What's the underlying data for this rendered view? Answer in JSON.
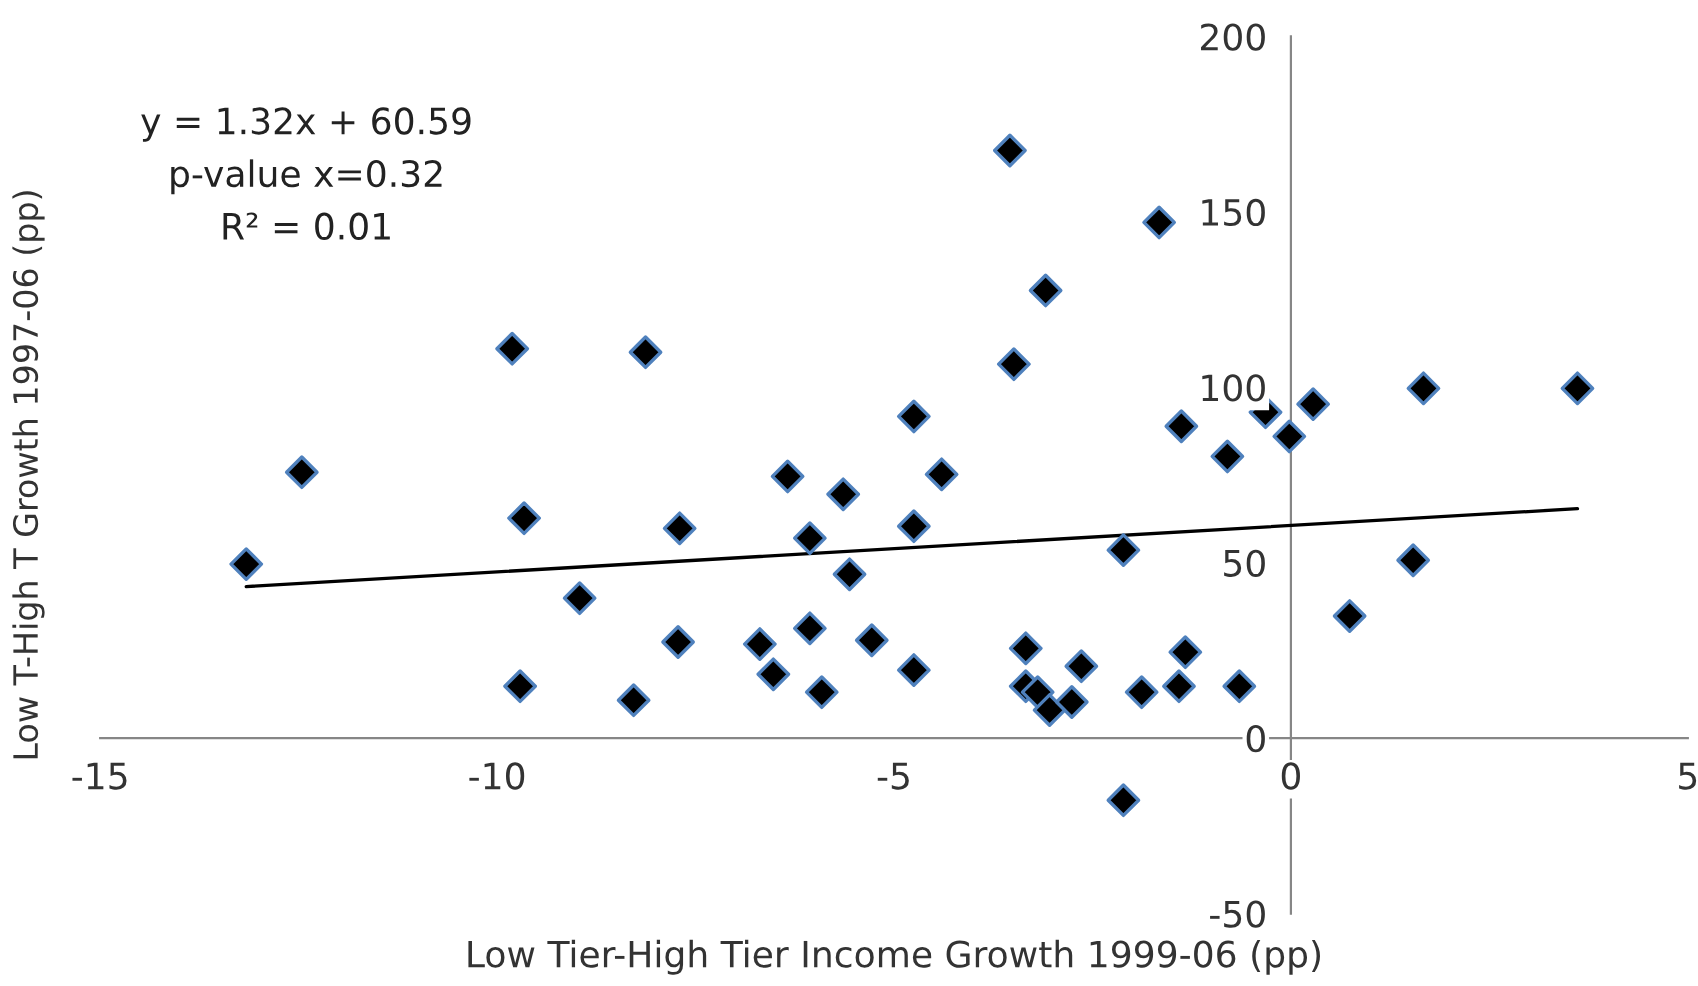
{
  "chart_data": {
    "type": "scatter",
    "xlabel": "Low Tier-High Tier Income Growth 1999-06 (pp)",
    "ylabel": "Low T-High T Growth 1997-06 (pp)",
    "annotations": [
      "y = 1.32x + 60.59",
      "p-value x=0.32",
      "R² = 0.01"
    ],
    "xlim": [
      -15,
      5
    ],
    "xticks": [
      -15,
      -10,
      -5,
      0,
      5
    ],
    "ylim": [
      -50,
      200
    ],
    "yticks": [
      -50,
      0,
      50,
      100,
      150,
      200
    ],
    "grid": false,
    "legend": false,
    "series": [
      {
        "color": "#000000",
        "marker": "diamond",
        "x": [
          -13.16,
          -12.46,
          -9.81,
          -9.66,
          -9.71,
          -8.96,
          -8.13,
          -8.28,
          -7.7,
          -7.72,
          -6.69,
          -6.52,
          -6.34,
          -6.06,
          -6.06,
          -5.91,
          -5.64,
          -5.56,
          -5.28,
          -4.75,
          -4.75,
          -4.75,
          -4.4,
          -3.54,
          -3.49,
          -3.34,
          -3.34,
          -3.19,
          -3.04,
          -3.09,
          -2.76,
          -2.64,
          -2.11,
          -2.11,
          -1.88,
          -1.66,
          -1.41,
          -1.33,
          -1.38,
          -0.65,
          -0.8,
          -0.32,
          -0.02,
          0.28,
          0.74,
          1.54,
          1.67,
          3.61
        ],
        "values": [
          49.6,
          75.8,
          111,
          62.7,
          14.8,
          39.9,
          110,
          10.8,
          59.8,
          27.4,
          26.8,
          18.2,
          74.6,
          57,
          31.3,
          13.1,
          69.5,
          46.7,
          27.9,
          91.7,
          60.4,
          19.4,
          75.2,
          167.5,
          106.6,
          25.6,
          14.8,
          13.1,
          8,
          127.6,
          10.3,
          20.5,
          53.6,
          -17.7,
          13.1,
          147,
          14.8,
          24.5,
          88.9,
          14.8,
          80.3,
          92.9,
          86,
          95.2,
          34.8,
          50.7,
          99.7,
          99.7
        ]
      },
      {
        "type": "line",
        "color": "#000000",
        "marker": "none",
        "line_style": "solid",
        "x": [
          -13.16,
          3.61
        ],
        "values": [
          43.2,
          65.4
        ]
      }
    ]
  }
}
